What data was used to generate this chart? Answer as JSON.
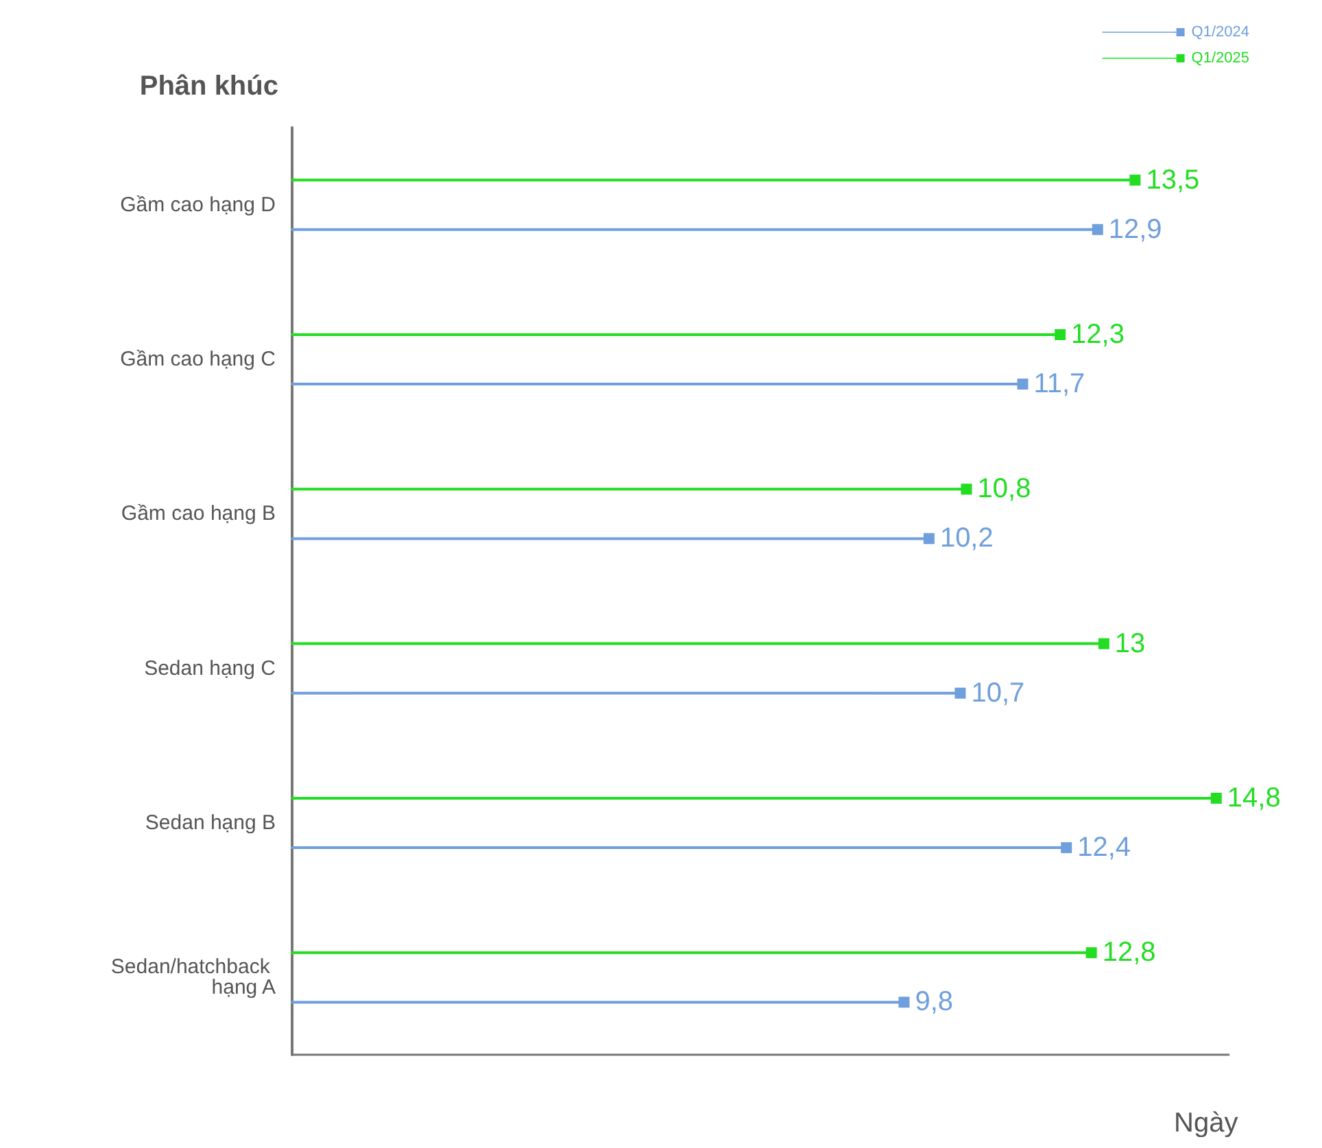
{
  "chart_data": {
    "type": "lollipop",
    "orientation": "horizontal",
    "ylabel": "Phân khúc",
    "xlabel": "Ngày",
    "categories": [
      "Gầm cao hạng D",
      "Gầm cao hạng C",
      "Gầm cao hạng B",
      "Sedan hạng C",
      "Sedan hạng B",
      "Sedan/hatchback hạng A"
    ],
    "series": [
      {
        "name": "Q1/2024",
        "color": "#6f9fdc",
        "values": [
          12.9,
          11.7,
          10.2,
          10.7,
          12.4,
          9.8
        ],
        "value_labels": [
          "12,9",
          "11,7",
          "10,2",
          "10,7",
          "12,4",
          "9,8"
        ]
      },
      {
        "name": "Q1/2025",
        "color": "#22dd22",
        "values": [
          13.5,
          12.3,
          10.8,
          13,
          14.8,
          12.8
        ],
        "value_labels": [
          "13,5",
          "12,3",
          "10,8",
          "13",
          "14,8",
          "12,8"
        ]
      }
    ],
    "marker": "square",
    "line_style": "solid",
    "legend": "top right",
    "grid": false,
    "tick_labels": "y"
  }
}
